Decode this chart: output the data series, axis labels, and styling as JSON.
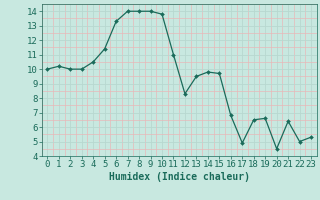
{
  "x": [
    0,
    1,
    2,
    3,
    4,
    5,
    6,
    7,
    8,
    9,
    10,
    11,
    12,
    13,
    14,
    15,
    16,
    17,
    18,
    19,
    20,
    21,
    22,
    23
  ],
  "y": [
    10,
    10.2,
    10,
    10,
    10.5,
    11.4,
    13.3,
    14,
    14,
    14,
    13.8,
    11,
    8.3,
    9.5,
    9.8,
    9.7,
    6.8,
    4.9,
    6.5,
    6.6,
    4.5,
    6.4,
    5.0,
    5.3
  ],
  "xlabel": "Humidex (Indice chaleur)",
  "ylim": [
    4,
    14.5
  ],
  "xlim": [
    -0.5,
    23.5
  ],
  "yticks": [
    4,
    5,
    6,
    7,
    8,
    9,
    10,
    11,
    12,
    13,
    14
  ],
  "xticks": [
    0,
    1,
    2,
    3,
    4,
    5,
    6,
    7,
    8,
    9,
    10,
    11,
    12,
    13,
    14,
    15,
    16,
    17,
    18,
    19,
    20,
    21,
    22,
    23
  ],
  "line_color": "#1a6b5a",
  "marker_color": "#1a6b5a",
  "bg_color": "#c8e8e0",
  "minor_grid_color": "#e8b8b8",
  "major_grid_color": "#b8d8d0",
  "xlabel_fontsize": 7,
  "tick_fontsize": 6.5
}
